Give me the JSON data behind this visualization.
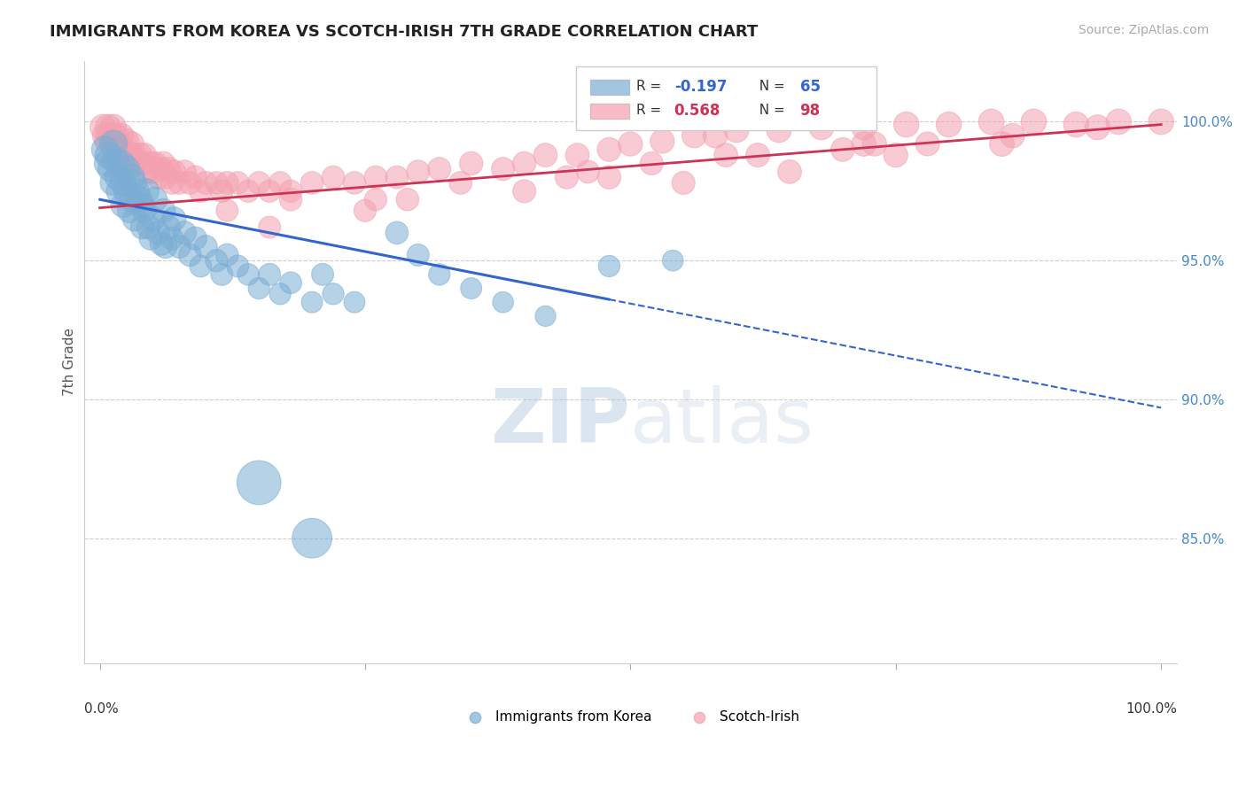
{
  "title": "IMMIGRANTS FROM KOREA VS SCOTCH-IRISH 7TH GRADE CORRELATION CHART",
  "source_text": "Source: ZipAtlas.com",
  "ylabel": "7th Grade",
  "legend_blue_label": "Immigrants from Korea",
  "legend_pink_label": "Scotch-Irish",
  "legend_blue_r": "-0.197",
  "legend_pink_r": "0.568",
  "legend_blue_n": "65",
  "legend_pink_n": "98",
  "blue_color": "#7badd4",
  "pink_color": "#f4a0b0",
  "blue_line_color": "#3366cc",
  "pink_line_color": "#cc3355",
  "ytick_labels": [
    "85.0%",
    "90.0%",
    "95.0%",
    "100.0%"
  ],
  "ytick_values": [
    0.85,
    0.9,
    0.95,
    1.0
  ],
  "ylim": [
    0.805,
    1.022
  ],
  "xlim": [
    -0.015,
    1.015
  ],
  "watermark_zip": "ZIP",
  "watermark_atlas": "atlas",
  "blue_line_x0": 0.0,
  "blue_line_y0": 0.972,
  "blue_line_x1": 1.0,
  "blue_line_y1": 0.897,
  "blue_line_solid_end": 0.48,
  "pink_line_x0": 0.0,
  "pink_line_y0": 0.969,
  "pink_line_x1": 1.0,
  "pink_line_y1": 0.999,
  "blue_scatter_x": [
    0.005,
    0.007,
    0.008,
    0.01,
    0.012,
    0.013,
    0.015,
    0.017,
    0.018,
    0.02,
    0.022,
    0.022,
    0.025,
    0.025,
    0.028,
    0.03,
    0.03,
    0.032,
    0.033,
    0.035,
    0.038,
    0.04,
    0.04,
    0.042,
    0.044,
    0.046,
    0.048,
    0.05,
    0.052,
    0.055,
    0.058,
    0.06,
    0.062,
    0.065,
    0.068,
    0.07,
    0.075,
    0.08,
    0.085,
    0.09,
    0.095,
    0.1,
    0.11,
    0.115,
    0.12,
    0.13,
    0.14,
    0.15,
    0.16,
    0.17,
    0.18,
    0.2,
    0.21,
    0.22,
    0.24,
    0.28,
    0.3,
    0.32,
    0.35,
    0.38,
    0.42,
    0.48,
    0.15,
    0.2,
    0.54
  ],
  "blue_scatter_y": [
    0.99,
    0.985,
    0.988,
    0.983,
    0.978,
    0.992,
    0.986,
    0.98,
    0.975,
    0.985,
    0.978,
    0.97,
    0.983,
    0.975,
    0.968,
    0.98,
    0.972,
    0.978,
    0.965,
    0.975,
    0.972,
    0.97,
    0.962,
    0.968,
    0.975,
    0.962,
    0.958,
    0.965,
    0.972,
    0.96,
    0.956,
    0.968,
    0.955,
    0.962,
    0.958,
    0.965,
    0.955,
    0.96,
    0.952,
    0.958,
    0.948,
    0.955,
    0.95,
    0.945,
    0.952,
    0.948,
    0.945,
    0.94,
    0.945,
    0.938,
    0.942,
    0.935,
    0.945,
    0.938,
    0.935,
    0.96,
    0.952,
    0.945,
    0.94,
    0.935,
    0.93,
    0.948,
    0.87,
    0.85,
    0.95
  ],
  "blue_scatter_sizes": [
    60,
    55,
    58,
    52,
    50,
    62,
    58,
    55,
    52,
    60,
    55,
    50,
    58,
    52,
    48,
    56,
    50,
    54,
    48,
    52,
    50,
    48,
    45,
    48,
    52,
    46,
    44,
    48,
    50,
    46,
    43,
    47,
    44,
    46,
    44,
    47,
    43,
    45,
    42,
    44,
    40,
    43,
    41,
    40,
    42,
    40,
    39,
    38,
    40,
    38,
    39,
    37,
    40,
    38,
    37,
    42,
    40,
    38,
    37,
    36,
    35,
    38,
    160,
    130,
    36
  ],
  "pink_scatter_x": [
    0.003,
    0.005,
    0.007,
    0.008,
    0.01,
    0.012,
    0.013,
    0.015,
    0.017,
    0.018,
    0.02,
    0.022,
    0.025,
    0.028,
    0.03,
    0.032,
    0.035,
    0.038,
    0.04,
    0.042,
    0.045,
    0.048,
    0.05,
    0.052,
    0.055,
    0.058,
    0.06,
    0.062,
    0.065,
    0.068,
    0.07,
    0.075,
    0.08,
    0.085,
    0.09,
    0.095,
    0.1,
    0.11,
    0.115,
    0.12,
    0.13,
    0.14,
    0.15,
    0.16,
    0.17,
    0.18,
    0.2,
    0.22,
    0.24,
    0.26,
    0.28,
    0.3,
    0.32,
    0.35,
    0.38,
    0.4,
    0.42,
    0.45,
    0.48,
    0.5,
    0.53,
    0.56,
    0.58,
    0.6,
    0.64,
    0.68,
    0.72,
    0.76,
    0.8,
    0.84,
    0.88,
    0.92,
    0.96,
    1.0,
    0.26,
    0.34,
    0.46,
    0.52,
    0.7,
    0.78,
    0.86,
    0.94,
    0.12,
    0.18,
    0.55,
    0.65,
    0.75,
    0.85,
    0.25,
    0.4,
    0.48,
    0.62,
    0.72,
    0.16,
    0.29,
    0.44,
    0.59,
    0.73
  ],
  "pink_scatter_y": [
    0.998,
    0.995,
    0.993,
    0.998,
    0.995,
    0.992,
    0.998,
    0.995,
    0.992,
    0.988,
    0.995,
    0.99,
    0.993,
    0.988,
    0.992,
    0.988,
    0.985,
    0.988,
    0.985,
    0.988,
    0.982,
    0.985,
    0.982,
    0.985,
    0.98,
    0.983,
    0.985,
    0.98,
    0.983,
    0.978,
    0.982,
    0.978,
    0.982,
    0.978,
    0.98,
    0.975,
    0.978,
    0.978,
    0.975,
    0.978,
    0.978,
    0.975,
    0.978,
    0.975,
    0.978,
    0.975,
    0.978,
    0.98,
    0.978,
    0.98,
    0.98,
    0.982,
    0.983,
    0.985,
    0.983,
    0.985,
    0.988,
    0.988,
    0.99,
    0.992,
    0.993,
    0.995,
    0.995,
    0.997,
    0.997,
    0.998,
    0.998,
    0.999,
    0.999,
    1.0,
    1.0,
    0.999,
    1.0,
    1.0,
    0.972,
    0.978,
    0.982,
    0.985,
    0.99,
    0.992,
    0.995,
    0.998,
    0.968,
    0.972,
    0.978,
    0.982,
    0.988,
    0.992,
    0.968,
    0.975,
    0.98,
    0.988,
    0.992,
    0.962,
    0.972,
    0.98,
    0.988,
    0.992
  ],
  "pink_scatter_sizes": [
    55,
    52,
    50,
    55,
    52,
    50,
    55,
    52,
    50,
    48,
    52,
    50,
    52,
    48,
    50,
    48,
    46,
    48,
    46,
    48,
    45,
    46,
    45,
    46,
    44,
    45,
    46,
    44,
    45,
    43,
    45,
    43,
    44,
    43,
    44,
    42,
    43,
    42,
    42,
    43,
    42,
    41,
    42,
    41,
    42,
    41,
    42,
    43,
    42,
    43,
    43,
    44,
    44,
    45,
    44,
    45,
    46,
    46,
    47,
    48,
    48,
    49,
    49,
    50,
    50,
    51,
    51,
    52,
    52,
    53,
    53,
    52,
    53,
    53,
    41,
    43,
    43,
    44,
    46,
    47,
    49,
    51,
    40,
    42,
    44,
    46,
    48,
    50,
    41,
    44,
    45,
    47,
    49,
    40,
    42,
    44,
    46,
    48
  ]
}
